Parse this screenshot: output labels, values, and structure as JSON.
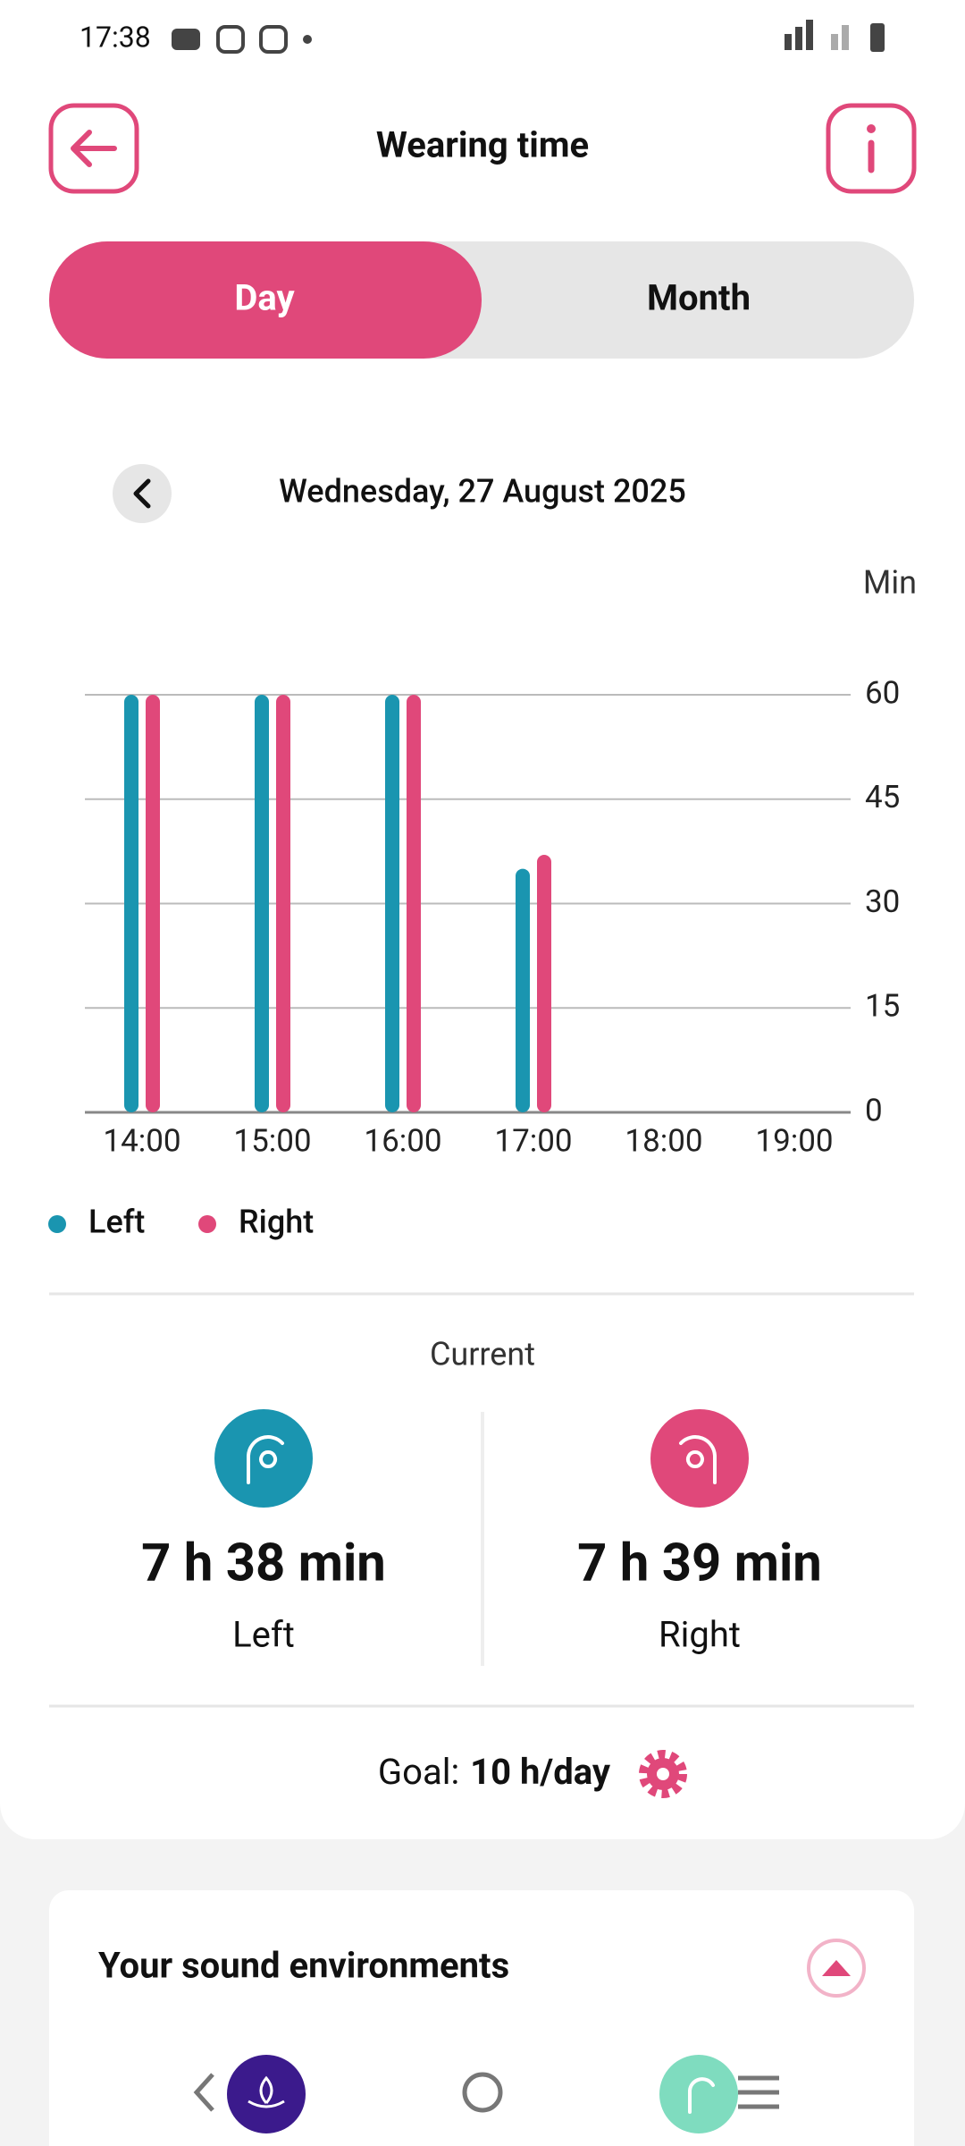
{
  "status_bar": {
    "time": "17:38"
  },
  "header": {
    "title": "Wearing time"
  },
  "tabs": [
    "Day",
    "Month"
  ],
  "date": "Wednesday, 27 August 2025",
  "chart_data": {
    "type": "bar",
    "ylabel": "Min",
    "categories": [
      "14:00",
      "15:00",
      "16:00",
      "17:00",
      "18:00",
      "19:00"
    ],
    "series": [
      {
        "name": "Left",
        "color": "#1a95b0",
        "values": [
          60,
          60,
          60,
          35,
          null,
          null
        ]
      },
      {
        "name": "Right",
        "color": "#e0487a",
        "values": [
          60,
          60,
          60,
          37,
          null,
          null
        ]
      }
    ],
    "ylim": [
      0,
      60
    ],
    "yticks": [
      0,
      15,
      30,
      45,
      60
    ],
    "grid": true
  },
  "current": {
    "title": "Current",
    "left": {
      "value": "7 h 38 min",
      "label": "Left"
    },
    "right": {
      "value": "7 h 39 min",
      "label": "Right"
    }
  },
  "goal": {
    "label": "Goal:",
    "value": "10 h/day"
  },
  "card": {
    "title": "Your sound environments"
  }
}
